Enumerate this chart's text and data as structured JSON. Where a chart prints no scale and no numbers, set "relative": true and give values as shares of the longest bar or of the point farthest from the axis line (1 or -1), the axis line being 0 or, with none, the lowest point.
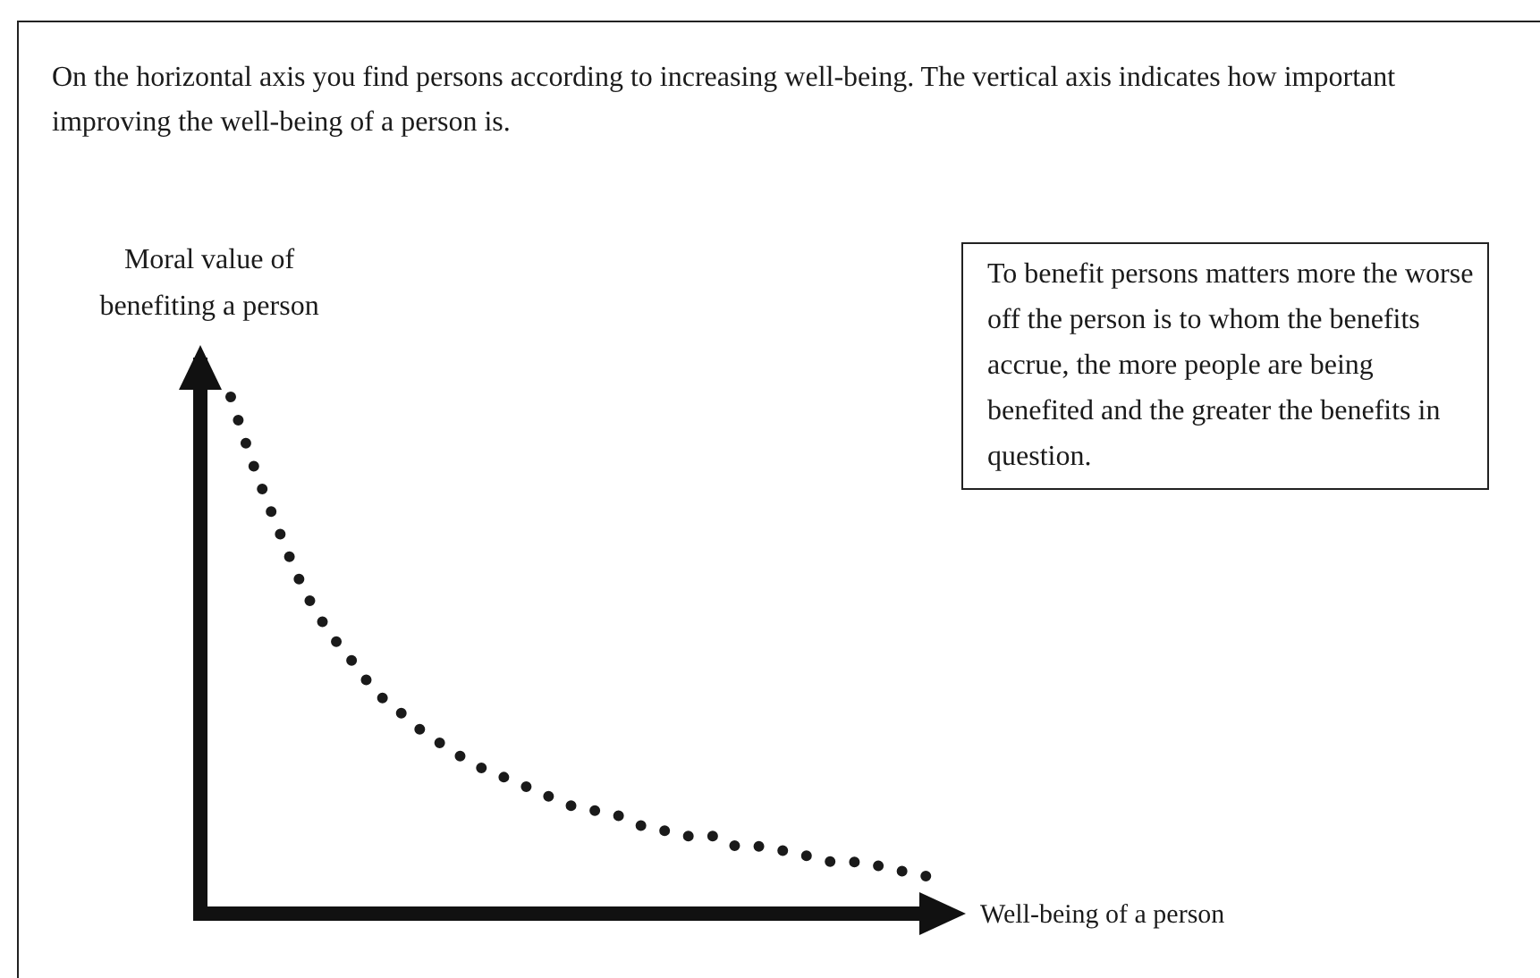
{
  "chart_data": {
    "type": "line",
    "relative": true,
    "title": "On the horizontal axis you find persons according to increasing well-being. The vertical axis indicates how important improving the well-being of a person is.",
    "ylabel": "Moral value of benefiting a person",
    "xlabel": "Well-being of a person",
    "annotations": [
      "To benefit persons matters more the worse off the person is to whom the benefits accrue, the more people are being benefited and the greater the benefits in question."
    ],
    "categories": [
      null,
      null,
      null,
      null,
      null,
      null,
      null,
      null,
      null,
      null,
      null,
      null,
      null,
      null,
      null,
      null,
      null,
      null,
      null,
      null,
      null,
      null,
      null,
      null,
      null,
      null,
      null,
      null,
      null,
      null
    ],
    "series": [
      {
        "color": "#1a1a1a",
        "values": [
          1,
          0.86,
          0.74,
          0.63,
          0.55,
          0.49,
          0.43,
          0.39,
          0.35,
          0.32,
          0.29,
          0.27,
          0.25,
          0.23,
          0.21,
          0.2,
          0.19,
          0.17,
          0.16,
          0.15,
          0.15,
          0.13,
          0.13,
          0.12,
          0.11,
          0.1,
          0.1,
          0.09,
          0.08,
          0.07
        ]
      }
    ],
    "line_style": "dotted",
    "marker": "none"
  }
}
